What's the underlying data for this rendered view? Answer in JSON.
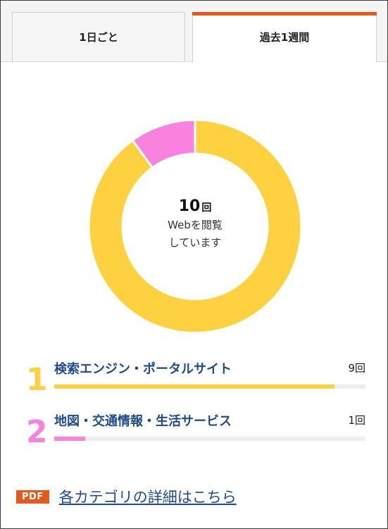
{
  "tabs": [
    {
      "label": "1日ごと",
      "active": false
    },
    {
      "label": "過去1週間",
      "active": true
    }
  ],
  "colors": {
    "accent": "#e35b1c",
    "category1": "#fdd13f",
    "category2": "#f982df",
    "label_blue": "#1f4a8c"
  },
  "summary": {
    "count": "10",
    "unit": "回",
    "caption_line1": "Webを閲覧",
    "caption_line2": "しています"
  },
  "chart_data": {
    "type": "pie",
    "total": 10,
    "slices": [
      {
        "label": "検索エンジン・ポータルサイト",
        "value": 9,
        "color": "#fdd13f"
      },
      {
        "label": "地図・交通情報・生活サービス",
        "value": 1,
        "color": "#f982df"
      }
    ]
  },
  "categories": [
    {
      "rank": "1",
      "label": "検索エンジン・ポータルサイト",
      "value": "9回",
      "count": 9,
      "fraction": 0.9
    },
    {
      "rank": "2",
      "label": "地図・交通情報・生活サービス",
      "value": "1回",
      "count": 1,
      "fraction": 0.1
    }
  ],
  "pdf": {
    "badge": "PDF",
    "link_text": "各カテゴリの詳細はこちら"
  }
}
